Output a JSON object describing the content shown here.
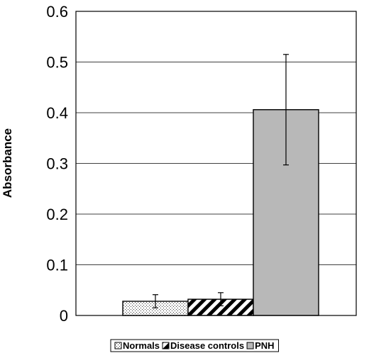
{
  "chart_data": {
    "type": "bar",
    "title": "",
    "xlabel": "",
    "ylabel": "Absorbance",
    "ylim": [
      0,
      0.6
    ],
    "yticks": [
      0,
      0.1,
      0.2,
      0.3,
      0.4,
      0.5,
      0.6
    ],
    "ytick_labels": [
      "0",
      "0.1",
      "0.2",
      "0.3",
      "0.4",
      "0.5",
      "0.6"
    ],
    "grid": true,
    "legend_position": "bottom",
    "series": [
      {
        "name": "Normals",
        "value": 0.028,
        "error": 0.013,
        "pattern": "dots"
      },
      {
        "name": "Disease controls",
        "value": 0.032,
        "error": 0.013,
        "pattern": "diagonal"
      },
      {
        "name": "PNH",
        "value": 0.406,
        "error": 0.109,
        "pattern": "gray",
        "color": "#b8b8b8"
      }
    ]
  }
}
